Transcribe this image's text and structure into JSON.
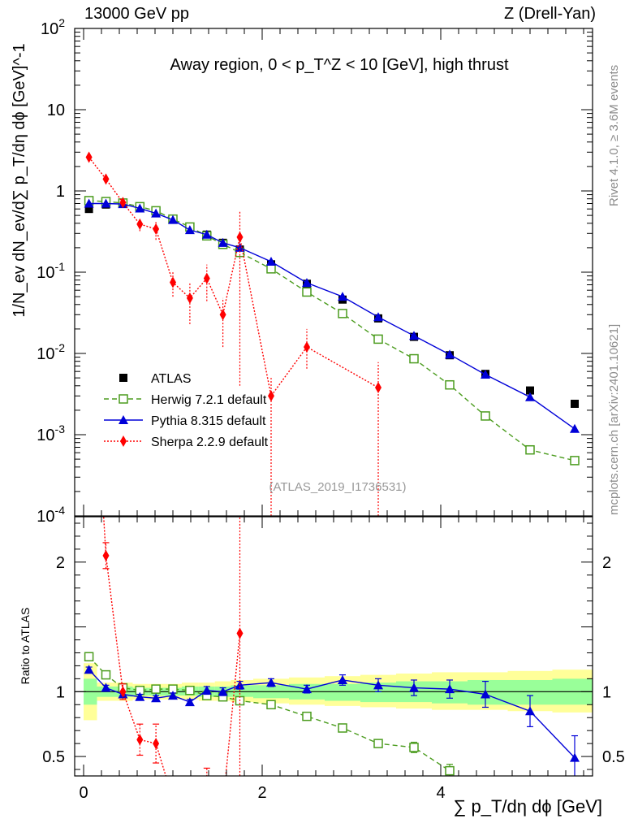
{
  "header": {
    "left": "13000 GeV pp",
    "right": "Z (Drell-Yan)"
  },
  "side_labels": {
    "rivet": "Rivet 4.1.0, ≥ 3.6M events",
    "mcplots": "mcplots.cern.ch [arXiv:2401.10621]"
  },
  "chart_data": {
    "type": "line",
    "title": "Away region, 0 < p_T^Z < 10 [GeV], high thrust",
    "watermark": "(ATLAS_2019_I1736531)",
    "xlabel": "∑ p_T/dη dϕ [GeV]",
    "xlim": [
      -0.1,
      5.7
    ],
    "x_ticks": [
      "0",
      "2",
      "4"
    ],
    "main": {
      "ylabel": "1/N_ev dN_ev/d∑ p_T/dη dϕ [GeV]^-1",
      "yscale": "log",
      "ylim": [
        0.0001,
        100
      ],
      "y_ticks": [
        "10^-4",
        "10^-3",
        "10^-2",
        "10^-1",
        "1",
        "10",
        "10^2"
      ]
    },
    "ratio": {
      "ylabel": "Ratio to ATLAS",
      "ylim": [
        0.35,
        2.35
      ],
      "y_ticks": [
        "0.5",
        "1",
        "2"
      ]
    },
    "legend": {
      "position": "lower-left",
      "entries": [
        "ATLAS",
        "Herwig 7.2.1 default",
        "Pythia 8.315 default",
        "Sherpa 2.2.9 default"
      ]
    },
    "series": [
      {
        "name": "ATLAS",
        "color": "#000000",
        "marker": "square",
        "x": [
          0.06,
          0.25,
          0.44,
          0.63,
          0.81,
          1.0,
          1.19,
          1.38,
          1.56,
          1.75,
          2.1,
          2.5,
          2.9,
          3.3,
          3.7,
          4.1,
          4.5,
          5.0,
          5.5
        ],
        "y": [
          0.6,
          0.68,
          0.7,
          0.63,
          0.56,
          0.45,
          0.36,
          0.29,
          0.23,
          0.19,
          0.125,
          0.072,
          0.046,
          0.027,
          0.016,
          0.0095,
          0.0056,
          0.0035,
          0.0024
        ]
      },
      {
        "name": "Herwig 7.2.1 default",
        "color": "#4b9c1e",
        "marker": "open-square",
        "x": [
          0.06,
          0.25,
          0.44,
          0.63,
          0.81,
          1.0,
          1.19,
          1.38,
          1.56,
          1.75,
          2.1,
          2.5,
          2.9,
          3.3,
          3.7,
          4.1,
          4.5,
          5.0,
          5.5
        ],
        "y": [
          0.76,
          0.74,
          0.71,
          0.64,
          0.57,
          0.45,
          0.36,
          0.28,
          0.22,
          0.175,
          0.11,
          0.057,
          0.031,
          0.015,
          0.0086,
          0.0041,
          0.0017,
          0.00065,
          0.00048
        ],
        "ratio": [
          1.27,
          1.13,
          1.03,
          1.01,
          1.02,
          1.02,
          1.01,
          0.97,
          0.96,
          0.93,
          0.9,
          0.81,
          0.72,
          0.6,
          0.57,
          0.39,
          null,
          null,
          null
        ],
        "ratio_err": [
          0.02,
          0.02,
          0.02,
          0.02,
          0.02,
          0.02,
          0.02,
          0.02,
          0.02,
          0.02,
          0.02,
          0.02,
          0.02,
          0.03,
          0.04,
          0.05,
          0,
          0,
          0
        ]
      },
      {
        "name": "Pythia 8.315 default",
        "color": "#0000d8",
        "marker": "triangle",
        "x": [
          0.06,
          0.25,
          0.44,
          0.63,
          0.81,
          1.0,
          1.19,
          1.38,
          1.56,
          1.75,
          2.1,
          2.5,
          2.9,
          3.3,
          3.7,
          4.1,
          4.5,
          5.0,
          5.5
        ],
        "y": [
          0.7,
          0.7,
          0.69,
          0.61,
          0.53,
          0.44,
          0.33,
          0.29,
          0.23,
          0.2,
          0.135,
          0.074,
          0.05,
          0.028,
          0.0165,
          0.0097,
          0.0055,
          0.0029,
          0.00118
        ],
        "ratio": [
          1.17,
          1.03,
          0.98,
          0.96,
          0.95,
          0.97,
          0.92,
          1.01,
          1.0,
          1.05,
          1.07,
          1.02,
          1.09,
          1.05,
          1.03,
          1.02,
          0.98,
          0.85,
          0.49
        ],
        "ratio_err": [
          0.02,
          0.02,
          0.02,
          0.02,
          0.02,
          0.02,
          0.02,
          0.03,
          0.03,
          0.03,
          0.03,
          0.03,
          0.04,
          0.05,
          0.06,
          0.07,
          0.1,
          0.12,
          0.17
        ]
      },
      {
        "name": "Sherpa 2.2.9 default",
        "color": "#ff0000",
        "marker": "diamond",
        "x": [
          0.06,
          0.25,
          0.44,
          0.63,
          0.81,
          1.0,
          1.19,
          1.38,
          1.56,
          1.75,
          2.1,
          2.5,
          3.3
        ],
        "y": [
          2.6,
          1.4,
          0.72,
          0.39,
          0.34,
          0.075,
          0.048,
          0.084,
          0.03,
          0.27,
          0.003,
          0.012,
          0.0038
        ],
        "y_err_lo": [
          0.08,
          0.1,
          0.05,
          0.07,
          0.09,
          0.025,
          0.025,
          0.04,
          0.018,
          0.266,
          0.00299,
          0.0055,
          0.00379
        ],
        "y_err_hi": [
          0.08,
          0.1,
          0.05,
          0.07,
          0.09,
          0.025,
          0.025,
          0.04,
          0.018,
          0.3,
          0.002,
          0.008,
          0.004
        ],
        "ratio": [
          4.3,
          2.05,
          1.0,
          0.63,
          0.6,
          0.17,
          0.13,
          0.29,
          0.13,
          1.45
        ],
        "ratio_err": [
          0.1,
          0.1,
          0.06,
          0.12,
          0.15,
          0.06,
          0.05,
          0.12,
          0.08,
          1.3
        ]
      }
    ],
    "uncertainty_bands": {
      "inner_color": "#99ff99",
      "outer_color": "#ffff99",
      "x_edges": [
        0.0,
        0.15,
        0.35,
        0.55,
        0.72,
        0.9,
        1.1,
        1.29,
        1.47,
        1.65,
        1.9,
        2.3,
        2.7,
        3.1,
        3.5,
        3.9,
        4.3,
        4.75,
        5.25,
        5.75
      ],
      "inner_lo": [
        0.9,
        0.96,
        0.96,
        0.97,
        0.97,
        0.97,
        0.97,
        0.96,
        0.96,
        0.96,
        0.95,
        0.94,
        0.93,
        0.92,
        0.92,
        0.91,
        0.9,
        0.9,
        0.9
      ],
      "inner_hi": [
        1.1,
        1.04,
        1.04,
        1.03,
        1.03,
        1.03,
        1.04,
        1.04,
        1.04,
        1.05,
        1.05,
        1.06,
        1.06,
        1.07,
        1.08,
        1.08,
        1.09,
        1.09,
        1.1
      ],
      "outer_lo": [
        0.78,
        0.93,
        0.93,
        0.94,
        0.94,
        0.94,
        0.94,
        0.93,
        0.93,
        0.92,
        0.91,
        0.9,
        0.89,
        0.88,
        0.87,
        0.86,
        0.86,
        0.85,
        0.84
      ],
      "outer_hi": [
        1.22,
        1.07,
        1.07,
        1.06,
        1.06,
        1.06,
        1.07,
        1.07,
        1.08,
        1.09,
        1.1,
        1.11,
        1.12,
        1.13,
        1.14,
        1.15,
        1.15,
        1.16,
        1.17
      ]
    }
  }
}
